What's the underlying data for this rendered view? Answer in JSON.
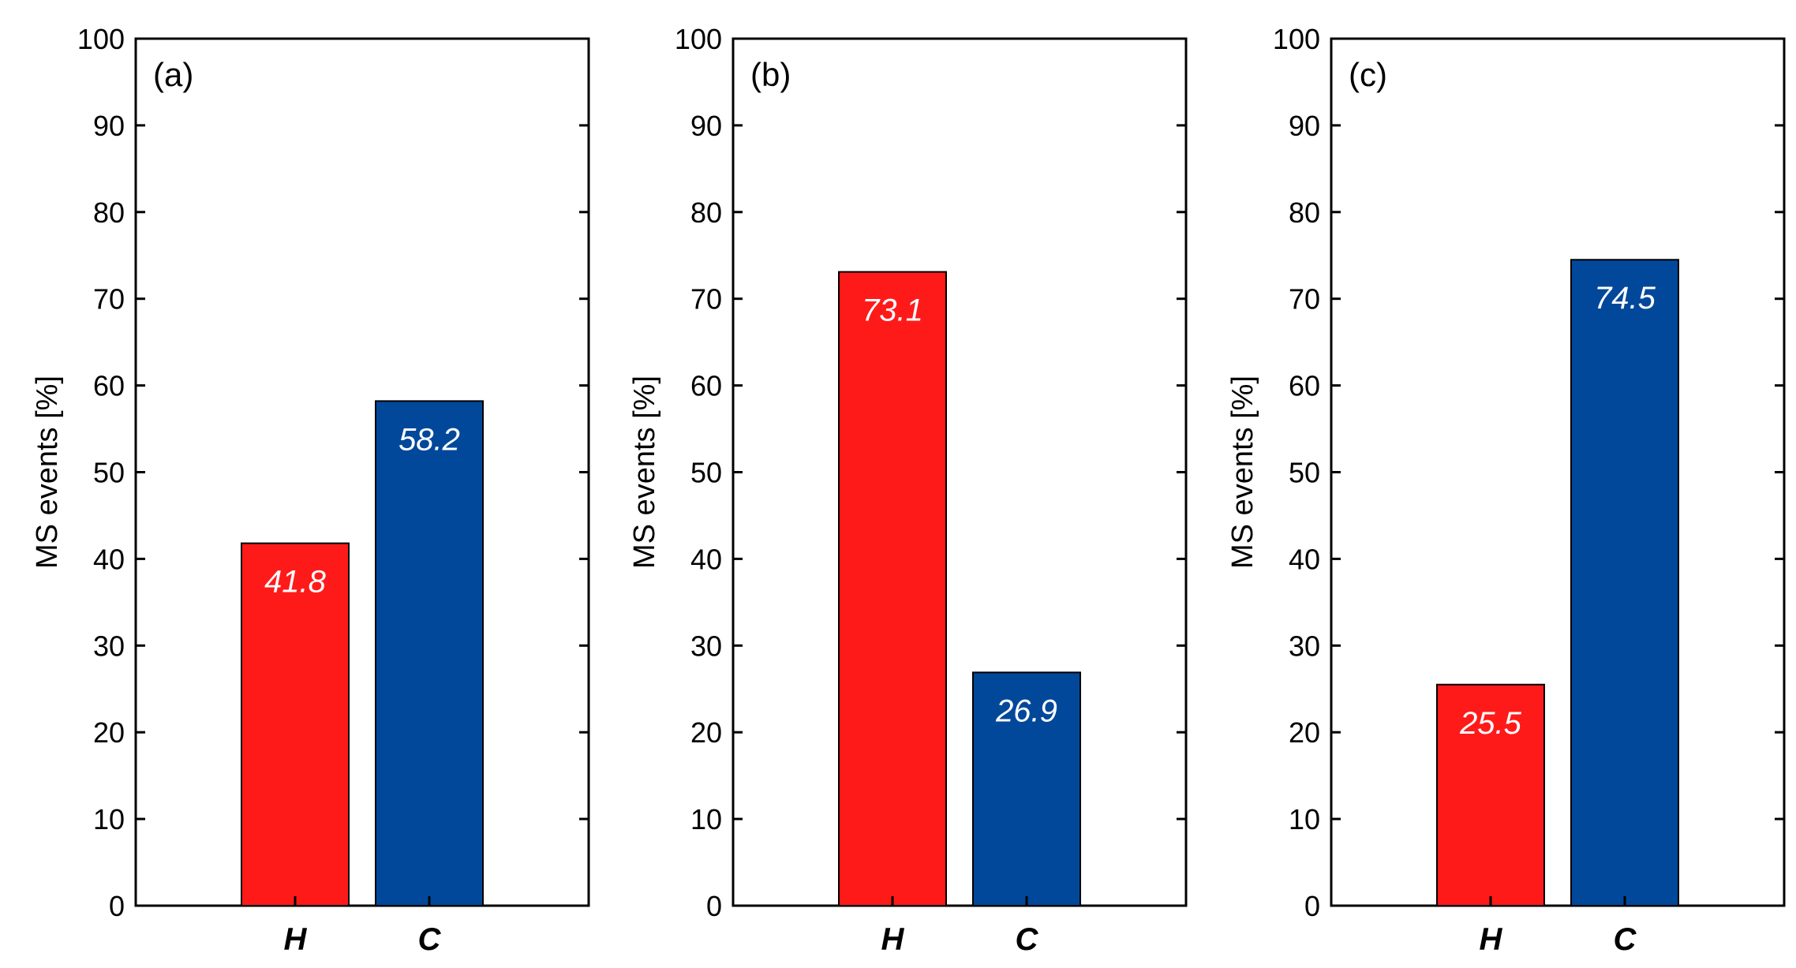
{
  "colors": {
    "H": "#ff1a1a",
    "C": "#02489a"
  },
  "chart_data": [
    {
      "type": "bar",
      "panel_label": "(a)",
      "categories": [
        "H",
        "C"
      ],
      "values": [
        41.8,
        58.2
      ],
      "value_labels": [
        "41.8",
        "58.2"
      ],
      "ylabel": "MS events [%]",
      "xlabel": "",
      "ylim": [
        0,
        100
      ],
      "yticks": [
        "0",
        "10",
        "20",
        "30",
        "40",
        "50",
        "60",
        "70",
        "80",
        "90",
        "100"
      ],
      "grid": false
    },
    {
      "type": "bar",
      "panel_label": "(b)",
      "categories": [
        "H",
        "C"
      ],
      "values": [
        73.1,
        26.9
      ],
      "value_labels": [
        "73.1",
        "26.9"
      ],
      "ylabel": "MS events [%]",
      "xlabel": "",
      "ylim": [
        0,
        100
      ],
      "yticks": [
        "0",
        "10",
        "20",
        "30",
        "40",
        "50",
        "60",
        "70",
        "80",
        "90",
        "100"
      ],
      "grid": false
    },
    {
      "type": "bar",
      "panel_label": "(c)",
      "categories": [
        "H",
        "C"
      ],
      "values": [
        25.5,
        74.5
      ],
      "value_labels": [
        "25.5",
        "74.5"
      ],
      "ylabel": "MS events [%]",
      "xlabel": "",
      "ylim": [
        0,
        100
      ],
      "yticks": [
        "0",
        "10",
        "20",
        "30",
        "40",
        "50",
        "60",
        "70",
        "80",
        "90",
        "100"
      ],
      "grid": false
    }
  ]
}
